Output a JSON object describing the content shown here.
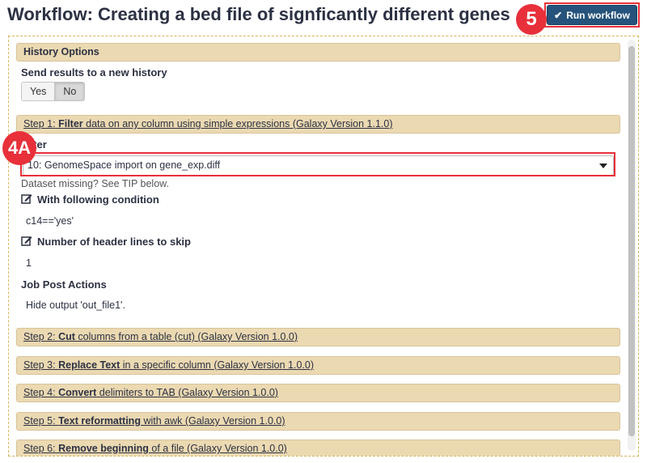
{
  "header": {
    "title": "Workflow: Creating a bed file of signficantly different genes",
    "run_label": "Run workflow"
  },
  "callouts": {
    "run": "5",
    "select": "4A"
  },
  "history_options": {
    "header": "History Options",
    "label": "Send results to a new history",
    "yes": "Yes",
    "no": "No",
    "selected": "No"
  },
  "step1": {
    "prefix": "Step 1: ",
    "tool": "Filter",
    "rest": " data on any column using simple expressions (Galaxy Version 1.1.0)",
    "filter_label": "Filter",
    "dataset_value": "10: GenomeSpace import on gene_exp.diff",
    "dataset_help": "Dataset missing? See TIP below.",
    "condition_label": "With following condition",
    "condition_value": "c14=='yes'",
    "header_lines_label": "Number of header lines to skip",
    "header_lines_value": "1",
    "post_actions_label": "Job Post Actions",
    "post_actions_value": "Hide output 'out_file1'."
  },
  "steps": [
    {
      "prefix": "Step 2: ",
      "tool": "Cut",
      "rest": " columns from a table (cut) (Galaxy Version 1.0.0)"
    },
    {
      "prefix": "Step 3: ",
      "tool": "Replace Text",
      "rest": " in a specific column (Galaxy Version 1.0.0)"
    },
    {
      "prefix": "Step 4: ",
      "tool": "Convert",
      "rest": " delimiters to TAB (Galaxy Version 1.0.0)"
    },
    {
      "prefix": "Step 5: ",
      "tool": "Text reformatting",
      "rest": " with awk (Galaxy Version 1.0.0)"
    },
    {
      "prefix": "Step 6: ",
      "tool": "Remove beginning",
      "rest": " of a file (Galaxy Version 1.0.0)"
    }
  ],
  "colors": {
    "accent": "#e8303a",
    "run_button": "#25537b",
    "section_header": "#ebd9b2"
  }
}
